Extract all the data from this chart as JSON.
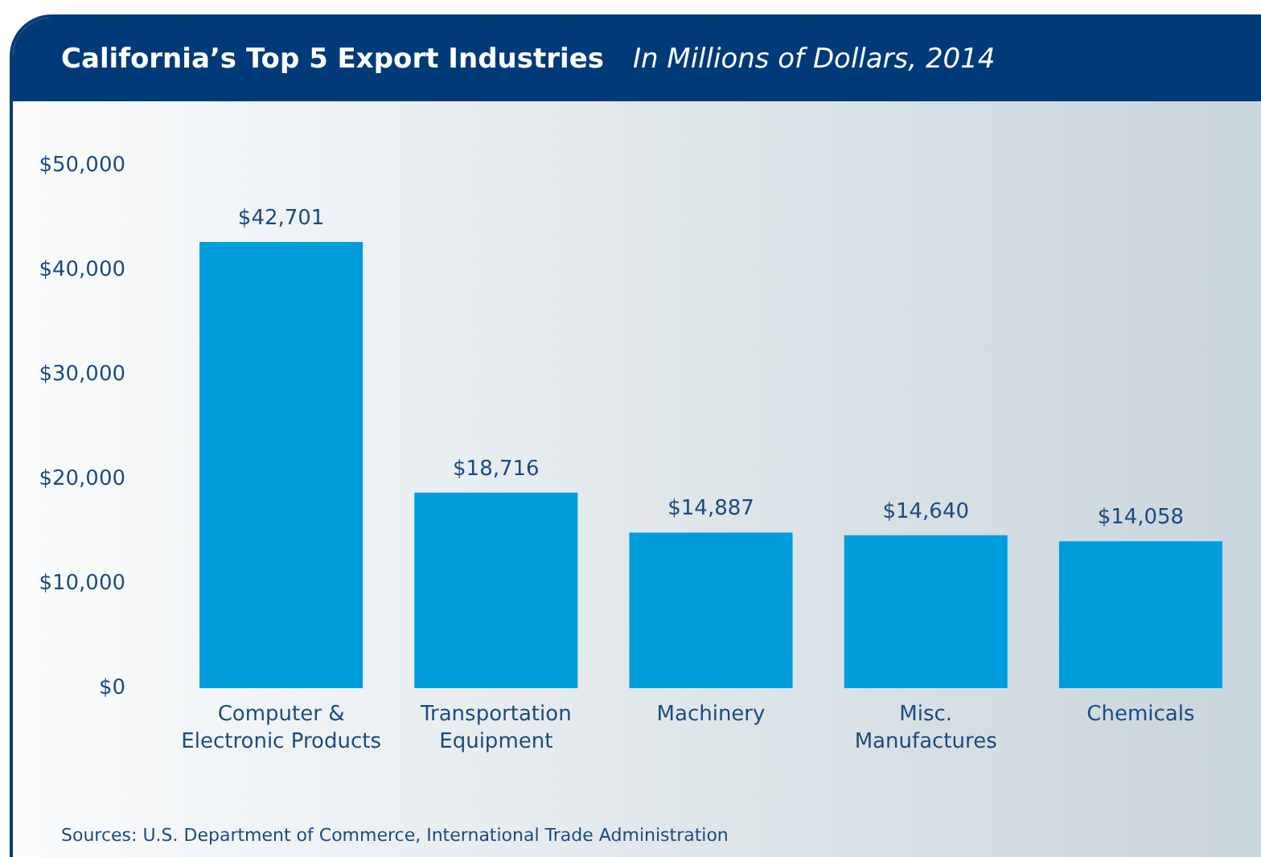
{
  "chart_data": {
    "type": "bar",
    "title": "California’s Top 5 Export Industries",
    "subtitle": "In Millions of Dollars, 2014",
    "categories": [
      "Computer &\nElectronic Products",
      "Transportation\nEquipment",
      "Machinery",
      "Misc.\nManufactures",
      "Chemicals"
    ],
    "values": [
      42701,
      18716,
      14887,
      14640,
      14058
    ],
    "color": "#009ddc",
    "value_labels": [
      "$42,701",
      "$18,716",
      "$14,887",
      "$14,640",
      "$14,058"
    ],
    "ylim": [
      0,
      50000
    ],
    "yticks": [
      {
        "value": 0,
        "label": "$0"
      },
      {
        "value": 10000,
        "label": "$10,000"
      },
      {
        "value": 20000,
        "label": "$20,000"
      },
      {
        "value": 30000,
        "label": "$30,000"
      },
      {
        "value": 40000,
        "label": "$40,000"
      },
      {
        "value": 50000,
        "label": "$50,000"
      }
    ],
    "grid": false,
    "annotations": [
      "Sources: U.S. Department of Commerce, International Trade Administration"
    ]
  }
}
